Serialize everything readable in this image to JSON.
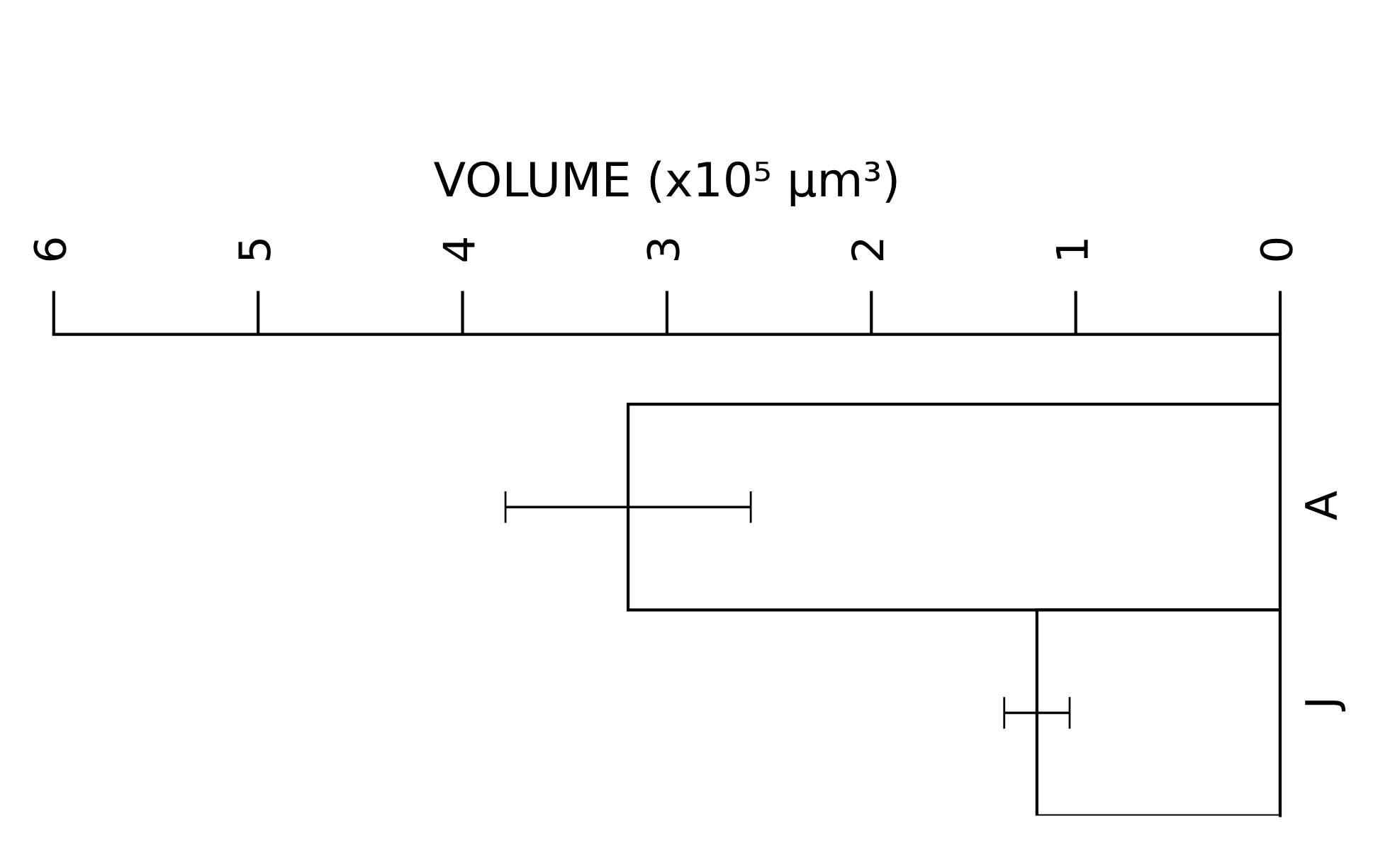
{
  "chart_data": {
    "type": "bar",
    "orientation": "horizontal",
    "xlabel": "VOLUME (x10⁵ µm³)",
    "categories": [
      "A",
      "J"
    ],
    "values": [
      3.19,
      1.19
    ],
    "errors": [
      0.6,
      0.16
    ],
    "color": "#ffffff",
    "xlim": [
      6,
      0
    ],
    "xticks": [
      6,
      5,
      4,
      3,
      2,
      1,
      0
    ],
    "grid": false
  }
}
